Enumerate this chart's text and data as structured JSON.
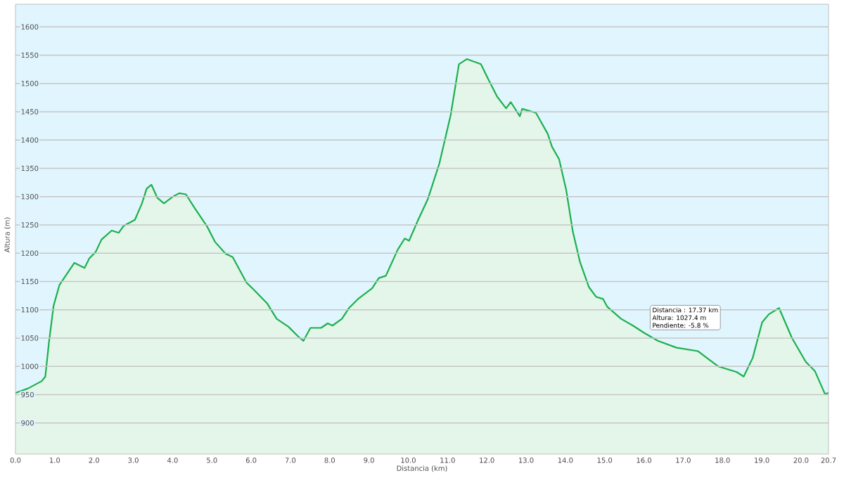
{
  "chart_data": {
    "type": "area",
    "xlabel": "Distancia (km)",
    "ylabel": "Altura (m)",
    "x": [
      0,
      0.32,
      0.67,
      0.76,
      0.85,
      0.97,
      1.12,
      1.5,
      1.76,
      1.88,
      2.04,
      2.19,
      2.45,
      2.63,
      2.75,
      3.04,
      3.22,
      3.34,
      3.46,
      3.61,
      3.78,
      4.01,
      4.17,
      4.34,
      4.56,
      4.88,
      5.08,
      5.35,
      5.53,
      5.88,
      6.06,
      6.3,
      6.41,
      6.65,
      6.95,
      7.18,
      7.33,
      7.51,
      7.78,
      7.95,
      8.07,
      8.31,
      8.49,
      8.72,
      9.08,
      9.25,
      9.43,
      9.73,
      9.91,
      10.02,
      10.24,
      10.5,
      10.79,
      11.08,
      11.29,
      11.49,
      11.85,
      12.02,
      12.26,
      12.49,
      12.61,
      12.84,
      12.9,
      13.25,
      13.55,
      13.66,
      13.84,
      14.02,
      14.19,
      14.37,
      14.6,
      14.78,
      14.96,
      15.07,
      15.42,
      15.72,
      16.01,
      16.36,
      16.83,
      17.37,
      17.89,
      18.36,
      18.54,
      18.77,
      19.01,
      19.18,
      19.44,
      19.77,
      20.12,
      20.35,
      20.61,
      20.7
    ],
    "series": [
      {
        "color": "#1cb04e",
        "values": [
          953,
          961,
          974,
          982,
          1041,
          1107,
          1144,
          1183,
          1174,
          1191,
          1202,
          1224,
          1240,
          1236,
          1248,
          1259,
          1288,
          1314,
          1321,
          1298,
          1288,
          1300,
          1306,
          1304,
          1280,
          1247,
          1220,
          1199,
          1193,
          1148,
          1136,
          1119,
          1111,
          1084,
          1070,
          1054,
          1045,
          1068,
          1068,
          1076,
          1072,
          1084,
          1103,
          1119,
          1138,
          1156,
          1160,
          1206,
          1226,
          1222,
          1257,
          1296,
          1358,
          1444,
          1534,
          1543,
          1534,
          1510,
          1477,
          1456,
          1467,
          1442,
          1455,
          1448,
          1411,
          1388,
          1366,
          1312,
          1238,
          1185,
          1140,
          1123,
          1119,
          1105,
          1084,
          1072,
          1059,
          1045,
          1033,
          1027,
          1000,
          990,
          982,
          1015,
          1078,
          1092,
          1103,
          1050,
          1008,
          992,
          951,
          953
        ]
      }
    ],
    "xlim": [
      0,
      20.7
    ],
    "ylim": [
      845,
      1640
    ],
    "xticks": [
      {
        "value": 0,
        "label": "0.0"
      },
      {
        "value": 1,
        "label": "1.0"
      },
      {
        "value": 2,
        "label": "2.0"
      },
      {
        "value": 3,
        "label": "3.0"
      },
      {
        "value": 4,
        "label": "4.0"
      },
      {
        "value": 5,
        "label": "5.0"
      },
      {
        "value": 6,
        "label": "6.0"
      },
      {
        "value": 7,
        "label": "7.0"
      },
      {
        "value": 8,
        "label": "8.0"
      },
      {
        "value": 9,
        "label": "9.0"
      },
      {
        "value": 10,
        "label": "10.0"
      },
      {
        "value": 11,
        "label": "11.0"
      },
      {
        "value": 12,
        "label": "12.0"
      },
      {
        "value": 13,
        "label": "13.0"
      },
      {
        "value": 14,
        "label": "14.0"
      },
      {
        "value": 15,
        "label": "15.0"
      },
      {
        "value": 16,
        "label": "16.0"
      },
      {
        "value": 17,
        "label": "17.0"
      },
      {
        "value": 18,
        "label": "18.0"
      },
      {
        "value": 19,
        "label": "19.0"
      },
      {
        "value": 20,
        "label": "20.0"
      },
      20.7
    ],
    "yticks": [
      900,
      950,
      1000,
      1050,
      1100,
      1150,
      1200,
      1250,
      1300,
      1350,
      1400,
      1450,
      1500,
      1550,
      1600
    ],
    "grid": "y",
    "marker": "none",
    "line_style": "solid",
    "annotations": [
      "Distancia : 17.37 km",
      "Altura: 1027.4 m",
      "Pendiente: -5.8 %"
    ]
  }
}
